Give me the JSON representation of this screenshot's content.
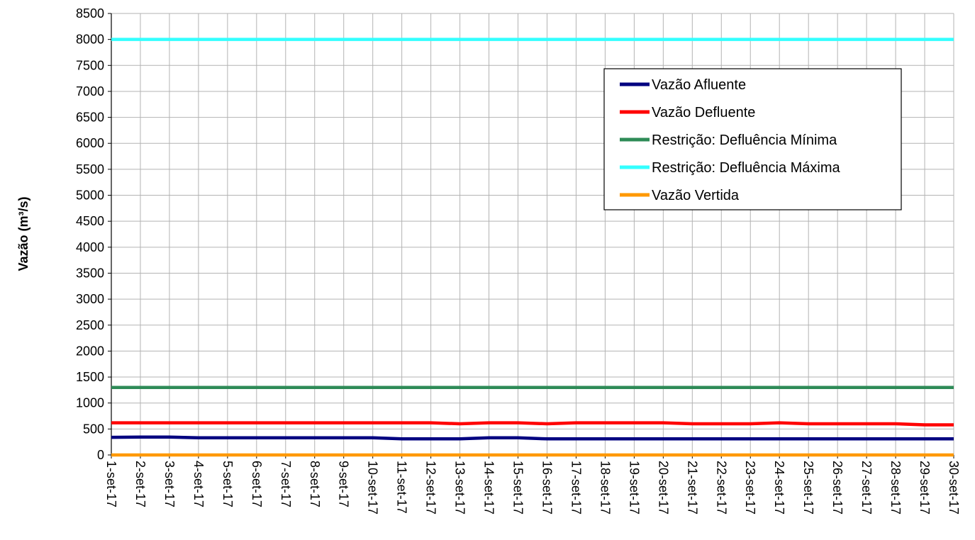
{
  "chart_data": {
    "type": "line",
    "title": "",
    "xlabel": "",
    "ylabel": "Vazão (m³/s)",
    "ylim": [
      0,
      8500
    ],
    "yticks": [
      0,
      500,
      1000,
      1500,
      2000,
      2500,
      3000,
      3500,
      4000,
      4500,
      5000,
      5500,
      6000,
      6500,
      7000,
      7500,
      8000,
      8500
    ],
    "grid": true,
    "legend_position": "top-right",
    "categories": [
      "1-set-17",
      "2-set-17",
      "3-set-17",
      "4-set-17",
      "5-set-17",
      "6-set-17",
      "7-set-17",
      "8-set-17",
      "9-set-17",
      "10-set-17",
      "11-set-17",
      "12-set-17",
      "13-set-17",
      "14-set-17",
      "15-set-17",
      "16-set-17",
      "17-set-17",
      "18-set-17",
      "19-set-17",
      "20-set-17",
      "21-set-17",
      "22-set-17",
      "23-set-17",
      "24-set-17",
      "25-set-17",
      "26-set-17",
      "27-set-17",
      "28-set-17",
      "29-set-17",
      "30-set-17"
    ],
    "series": [
      {
        "name": "Vazão Afluente",
        "color": "#000080",
        "values": [
          340,
          345,
          345,
          330,
          330,
          330,
          330,
          330,
          330,
          330,
          310,
          310,
          310,
          330,
          330,
          310,
          310,
          310,
          310,
          310,
          310,
          310,
          310,
          310,
          310,
          310,
          310,
          310,
          310,
          310
        ]
      },
      {
        "name": "Vazão Defluente",
        "color": "#ff0000",
        "values": [
          620,
          620,
          620,
          620,
          620,
          620,
          620,
          620,
          620,
          620,
          620,
          620,
          600,
          620,
          620,
          600,
          620,
          620,
          620,
          620,
          600,
          600,
          600,
          620,
          600,
          600,
          600,
          600,
          580,
          580
        ]
      },
      {
        "name": "Restrição: Defluência Mínima",
        "color": "#2e8b57",
        "values": [
          1300,
          1300,
          1300,
          1300,
          1300,
          1300,
          1300,
          1300,
          1300,
          1300,
          1300,
          1300,
          1300,
          1300,
          1300,
          1300,
          1300,
          1300,
          1300,
          1300,
          1300,
          1300,
          1300,
          1300,
          1300,
          1300,
          1300,
          1300,
          1300,
          1300
        ]
      },
      {
        "name": "Restrição: Defluência Máxima",
        "color": "#33ffff",
        "values": [
          8000,
          8000,
          8000,
          8000,
          8000,
          8000,
          8000,
          8000,
          8000,
          8000,
          8000,
          8000,
          8000,
          8000,
          8000,
          8000,
          8000,
          8000,
          8000,
          8000,
          8000,
          8000,
          8000,
          8000,
          8000,
          8000,
          8000,
          8000,
          8000,
          8000
        ]
      },
      {
        "name": "Vazão Vertida",
        "color": "#ff9900",
        "values": [
          0,
          0,
          0,
          0,
          0,
          0,
          0,
          0,
          0,
          0,
          0,
          0,
          0,
          0,
          0,
          0,
          0,
          0,
          0,
          0,
          0,
          0,
          0,
          0,
          0,
          0,
          0,
          0,
          0,
          0
        ]
      }
    ]
  }
}
